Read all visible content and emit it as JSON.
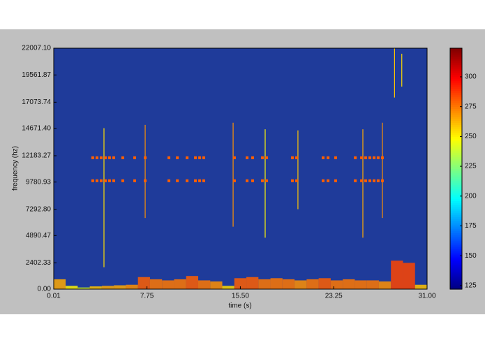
{
  "chart_data": {
    "type": "spectrogram",
    "xlabel": "time (s)",
    "ylabel": "frequency (hz)",
    "xlim": [
      0.01,
      31
    ],
    "xticks": [
      0.01,
      7.75,
      {
        "value": 15.5,
        "label": "15.50"
      },
      23.25,
      {
        "value": 31,
        "label": "31.00"
      }
    ],
    "ylim": [
      0,
      22007.1
    ],
    "yticks": [
      {
        "value": 0,
        "label": "0.00"
      },
      2402.33,
      4890.47,
      {
        "value": 7292.8,
        "label": "7292.80"
      },
      9780.93,
      12183.27,
      {
        "value": 14671.4,
        "label": "14671.40"
      },
      17073.74,
      19561.87,
      {
        "value": 22007.1,
        "label": "22007.10"
      }
    ],
    "colormap": "jet",
    "background_color": "#1f3b9a",
    "clim": [
      122,
      324
    ],
    "cticks": [
      125,
      150,
      175,
      200,
      225,
      250,
      275,
      300
    ],
    "tones": [
      {
        "y": 12000,
        "x": [
          3.25,
          3.6,
          3.95,
          4.3,
          4.64,
          4.99,
          5.74,
          6.73,
          7.6,
          9.57,
          10.27,
          11.08,
          11.77,
          12.12,
          12.46,
          15.01,
          16.06,
          16.52,
          17.33,
          17.68,
          19.82,
          20.17,
          22.37,
          22.78,
          23.41,
          25.04,
          25.56,
          25.9,
          26.25,
          26.6,
          26.94,
          27.29
        ],
        "values": [
          280,
          280,
          280,
          280,
          280,
          280,
          280,
          280,
          280,
          280,
          280,
          280,
          280,
          280,
          280,
          280,
          280,
          280,
          280,
          280,
          280,
          280,
          280,
          280,
          280,
          280,
          280,
          280,
          280,
          280,
          280,
          280
        ]
      },
      {
        "y": 9900,
        "x": [
          3.25,
          3.6,
          3.95,
          4.3,
          4.64,
          4.99,
          5.74,
          6.73,
          7.6,
          9.57,
          10.27,
          11.08,
          11.77,
          12.12,
          12.46,
          15.01,
          16.06,
          16.52,
          17.33,
          17.68,
          19.82,
          20.17,
          22.37,
          22.78,
          23.41,
          25.04,
          25.56,
          25.9,
          26.25,
          26.6,
          26.94,
          27.29
        ],
        "values": [
          280,
          280,
          280,
          280,
          280,
          280,
          280,
          280,
          280,
          280,
          280,
          280,
          280,
          280,
          280,
          280,
          280,
          280,
          280,
          280,
          280,
          280,
          280,
          280,
          280,
          280,
          280,
          280,
          280,
          280,
          280,
          280
        ]
      }
    ],
    "streaks": {
      "x": [
        4.18,
        7.6,
        14.9,
        17.56,
        20.28,
        25.67,
        27.29,
        28.3,
        28.9
      ],
      "y0": [
        2000,
        6500,
        5700,
        4700,
        7300,
        4700,
        6500,
        17500,
        18500
      ],
      "y1": [
        14700,
        15000,
        15200,
        14600,
        14500,
        14600,
        15200,
        22000,
        21500
      ],
      "values": [
        255,
        270,
        270,
        250,
        260,
        265,
        270,
        260,
        255
      ]
    },
    "noise": {
      "x": [
        0.5,
        1.5,
        2.5,
        3.5,
        4.5,
        5.5,
        6.5,
        7.5,
        8.5,
        9.5,
        10.5,
        11.5,
        12.5,
        13.5,
        14.5,
        15.5,
        16.5,
        17.5,
        18.5,
        19.5,
        20.5,
        21.5,
        22.5,
        23.5,
        24.5,
        25.5,
        26.5,
        27.5,
        28.5,
        29.5,
        30.5
      ],
      "y": [
        900,
        300,
        150,
        250,
        300,
        350,
        400,
        1100,
        900,
        800,
        900,
        1200,
        800,
        700,
        300,
        1000,
        1100,
        900,
        1000,
        900,
        800,
        900,
        1000,
        800,
        900,
        800,
        800,
        700,
        2600,
        2400,
        400
      ],
      "values": [
        265,
        250,
        240,
        260,
        265,
        265,
        270,
        280,
        275,
        275,
        275,
        280,
        275,
        270,
        255,
        280,
        280,
        275,
        275,
        275,
        270,
        275,
        280,
        275,
        275,
        275,
        275,
        270,
        285,
        285,
        260
      ]
    }
  }
}
